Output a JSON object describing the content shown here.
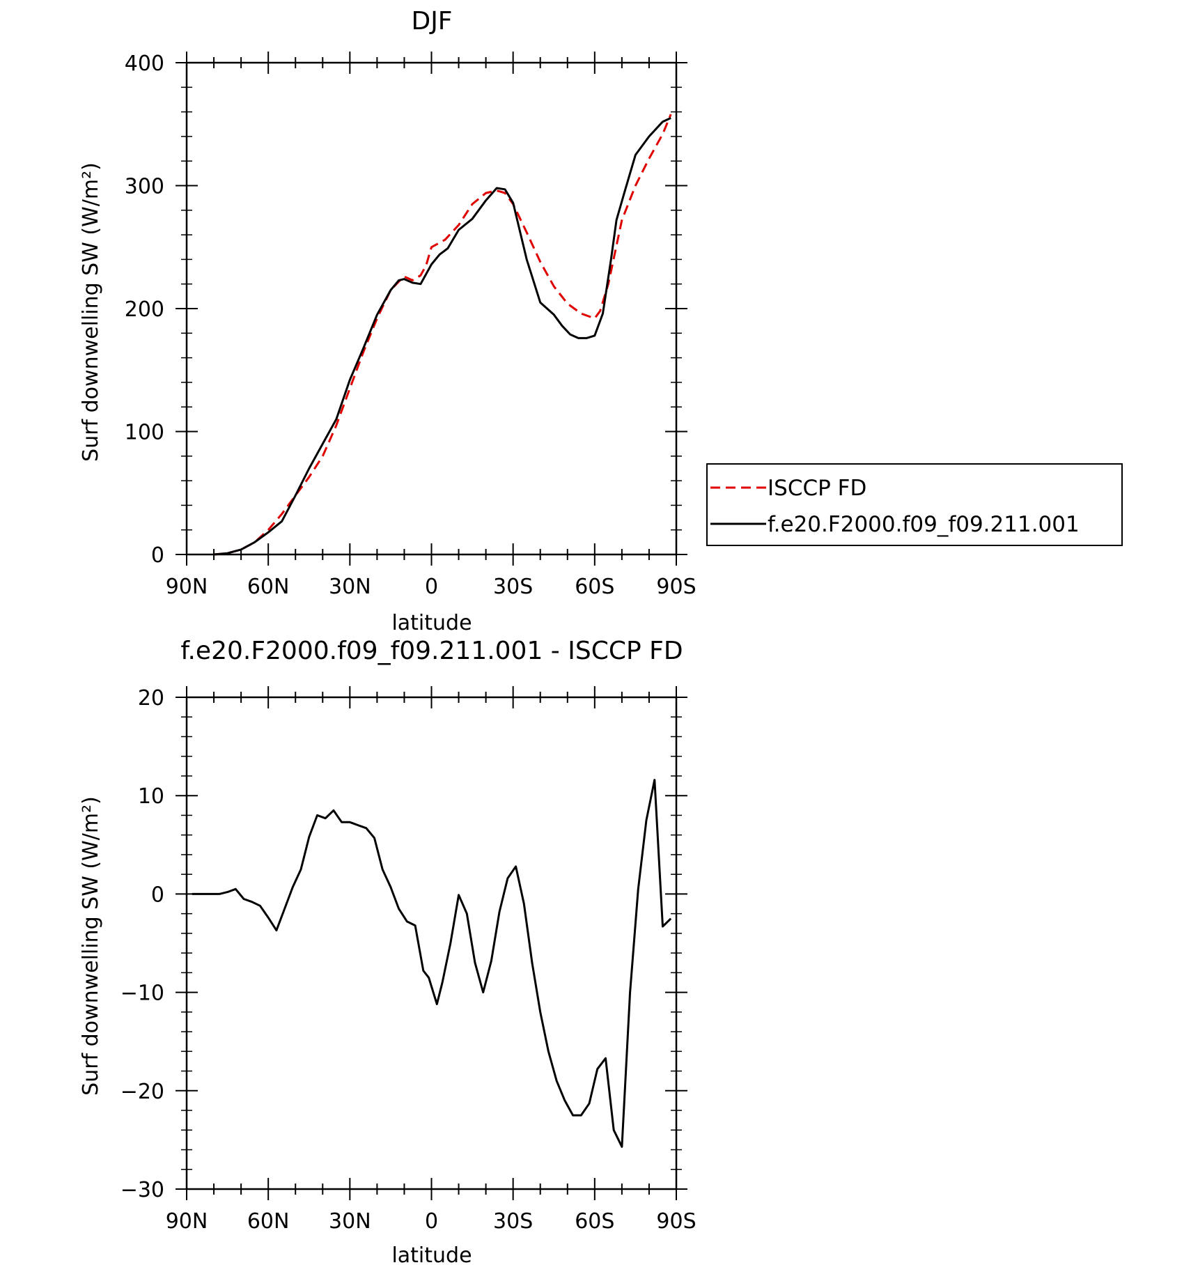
{
  "chart_data": [
    {
      "type": "line",
      "title": "DJF",
      "xlabel": "latitude",
      "ylabel": "Surf downwelling SW (W/m²)",
      "xlim": [
        90,
        -90
      ],
      "ylim": [
        0,
        400
      ],
      "xticks": [
        90,
        60,
        30,
        0,
        -30,
        -60,
        -90
      ],
      "xtick_labels": [
        "90N",
        "60N",
        "30N",
        "0",
        "30S",
        "60S",
        "90S"
      ],
      "yticks": [
        0,
        100,
        200,
        300,
        400
      ],
      "ytick_labels": [
        "0",
        "100",
        "200",
        "300",
        "400"
      ],
      "legend_position": "right",
      "series": [
        {
          "name": "ISCCP FD",
          "color": "#e00000",
          "style": "dashed",
          "x": [
            80,
            75,
            70,
            65,
            60,
            55,
            50,
            45,
            40,
            35,
            30,
            25,
            20,
            15,
            12,
            10,
            7,
            4,
            2,
            0,
            -5,
            -10,
            -15,
            -20,
            -24,
            -27,
            -30,
            -35,
            -40,
            -45,
            -50,
            -55,
            -60,
            -62,
            -65,
            -70,
            -75,
            -80,
            -85,
            -88
          ],
          "y": [
            0,
            1,
            4,
            10,
            20,
            33,
            48,
            63,
            80,
            105,
            135,
            165,
            192,
            215,
            222,
            226,
            223,
            227,
            235,
            250,
            256,
            268,
            285,
            294,
            296,
            294,
            285,
            262,
            238,
            218,
            204,
            196,
            192,
            198,
            220,
            272,
            300,
            322,
            342,
            358
          ]
        },
        {
          "name": "f.e20.F2000.f09_f09.211.001",
          "color": "#000000",
          "style": "solid",
          "x": [
            80,
            75,
            70,
            65,
            60,
            55,
            50,
            45,
            40,
            35,
            30,
            25,
            20,
            15,
            12,
            10,
            7,
            4,
            2,
            0,
            -3,
            -6,
            -10,
            -15,
            -20,
            -24,
            -27,
            -30,
            -35,
            -40,
            -45,
            -48,
            -51,
            -54,
            -57,
            -60,
            -63,
            -66,
            -68,
            -71,
            -75,
            -80,
            -85,
            -88
          ],
          "y": [
            0,
            1,
            4,
            10,
            18,
            27,
            48,
            70,
            90,
            110,
            142,
            168,
            195,
            215,
            223,
            224,
            221,
            220,
            228,
            236,
            244,
            249,
            264,
            273,
            288,
            298,
            297,
            286,
            240,
            205,
            195,
            186,
            179,
            176,
            176,
            178,
            196,
            240,
            272,
            295,
            325,
            340,
            352,
            355
          ]
        }
      ]
    },
    {
      "type": "line",
      "title": "f.e20.F2000.f09_f09.211.001 - ISCCP FD",
      "xlabel": "latitude",
      "ylabel": "Surf downwelling SW (W/m²)",
      "xlim": [
        90,
        -90
      ],
      "ylim": [
        -30,
        20
      ],
      "xticks": [
        90,
        60,
        30,
        0,
        -30,
        -60,
        -90
      ],
      "xtick_labels": [
        "90N",
        "60N",
        "30N",
        "0",
        "30S",
        "60S",
        "90S"
      ],
      "yticks": [
        -30,
        -20,
        -10,
        0,
        10,
        20
      ],
      "ytick_labels": [
        "−30",
        "−20",
        "−10",
        "0",
        "10",
        "20"
      ],
      "series": [
        {
          "color": "#000000",
          "style": "solid",
          "x": [
            88,
            85,
            82,
            78,
            75,
            72,
            69,
            66,
            63,
            60,
            57,
            54,
            51,
            48,
            45,
            42,
            39,
            36,
            33,
            30,
            27,
            24,
            21,
            18,
            15,
            12,
            9,
            6,
            3,
            1,
            -2,
            -4,
            -7,
            -10,
            -13,
            -16,
            -19,
            -22,
            -25,
            -28,
            -31,
            -34,
            -37,
            -40,
            -43,
            -46,
            -49,
            -52,
            -55,
            -58,
            -61,
            -64,
            -67,
            -70,
            -73,
            -76,
            -79,
            -82,
            -85,
            -88
          ],
          "y": [
            0,
            0,
            0,
            0,
            0.2,
            0.5,
            -0.5,
            -0.8,
            -1.2,
            -2.4,
            -3.7,
            -1.5,
            0.7,
            2.5,
            5.8,
            8.0,
            7.7,
            8.5,
            7.3,
            7.3,
            7.0,
            6.7,
            5.7,
            2.5,
            0.7,
            -1.5,
            -2.8,
            -3.2,
            -7.8,
            -8.5,
            -11.2,
            -9.0,
            -5.0,
            -0.1,
            -2.0,
            -7.0,
            -10.0,
            -6.8,
            -1.8,
            1.6,
            2.8,
            -1.0,
            -7.0,
            -12.0,
            -16.0,
            -19.0,
            -21.0,
            -22.5,
            -22.5,
            -21.3,
            -17.8,
            -16.7,
            -24.0,
            -25.7,
            -10.0,
            0.5,
            7.5,
            11.6,
            -3.3,
            -2.5
          ]
        }
      ]
    }
  ]
}
